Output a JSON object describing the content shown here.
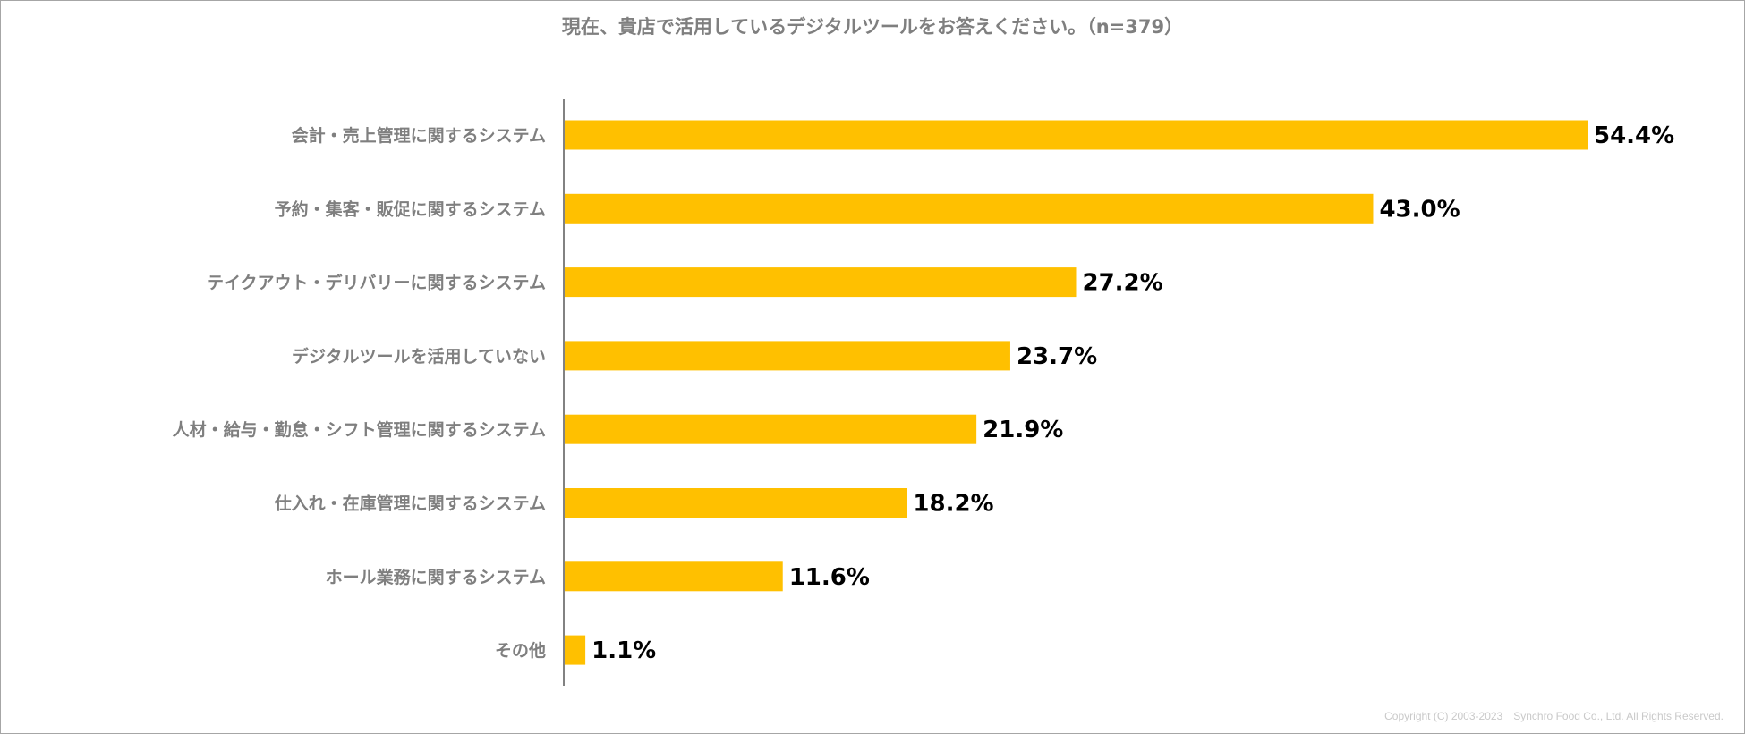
{
  "chart_data": {
    "type": "bar",
    "orientation": "horizontal",
    "title": "現在、貴店で活用しているデジタルツールをお答えください。（n=379）",
    "categories": [
      "会計・売上管理に関するシステム",
      "予約・集客・販促に関するシステム",
      "テイクアウト・デリバリーに関するシステム",
      "デジタルツールを活用していない",
      "人材・給与・勤怠・シフト管理に関するシステム",
      "仕入れ・在庫管理に関するシステム",
      "ホール業務に関するシステム",
      "その他"
    ],
    "values": [
      54.4,
      43.0,
      27.2,
      23.7,
      21.9,
      18.2,
      11.6,
      1.1
    ],
    "value_labels": [
      "54.4%",
      "43.0%",
      "27.2%",
      "23.7%",
      "21.9%",
      "18.2%",
      "11.6%",
      "1.1%"
    ],
    "unit": "%",
    "xlim": [
      0,
      60
    ],
    "grid": false,
    "bar_color": "#FFC000"
  },
  "footer": {
    "copyright": "Copyright (C) 2003-2023　Synchro Food Co., Ltd. All Rights Reserved."
  }
}
